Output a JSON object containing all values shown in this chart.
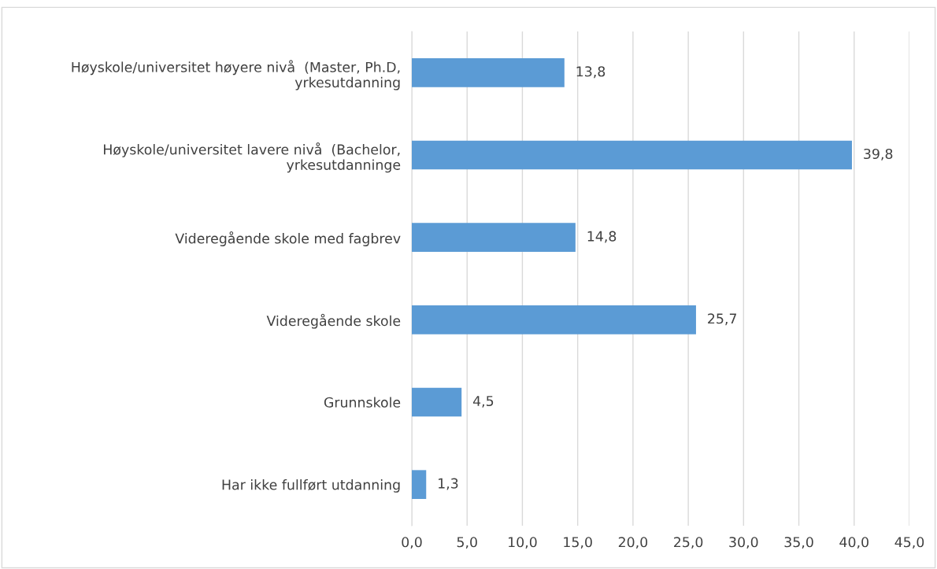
{
  "chart_data": {
    "type": "bar",
    "orientation": "horizontal",
    "categories": [
      "Høyskole/universitet høyere nivå  (Master, Ph.D, yrkesutdanning",
      "Høyskole/universitet lavere nivå  (Bachelor, yrkesutdanninge",
      "Videregående skole med fagbrev",
      "Videregående skole",
      "Grunnskole",
      "Har ikke fullført utdanning"
    ],
    "values": [
      13.8,
      39.8,
      14.8,
      25.7,
      4.5,
      1.3
    ],
    "value_labels": [
      "13,8",
      "39,8",
      "14,8",
      "25,7",
      "4,5",
      "1,3"
    ],
    "color": "#5b9bd5",
    "xlim": [
      0,
      45
    ],
    "xticks": [
      {
        "value": 0,
        "label": "0,0"
      },
      {
        "value": 5,
        "label": "5,0"
      },
      {
        "value": 10,
        "label": "10,0"
      },
      {
        "value": 15,
        "label": "15,0"
      },
      {
        "value": 20,
        "label": "20,0"
      },
      {
        "value": 25,
        "label": "25,0"
      },
      {
        "value": 30,
        "label": "30,0"
      },
      {
        "value": 35,
        "label": "35,0"
      },
      {
        "value": 40,
        "label": "40,0"
      },
      {
        "value": 45,
        "label": "45,0"
      }
    ],
    "grid": "x"
  }
}
